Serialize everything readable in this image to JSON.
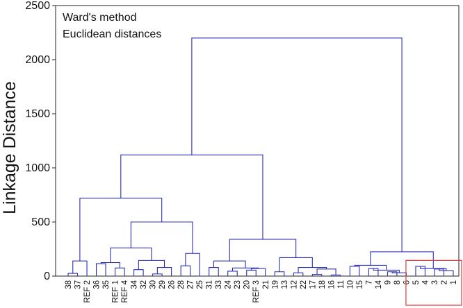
{
  "chart_data": {
    "type": "dendrogram",
    "ylabel": "Linkage Distance",
    "annotation_lines": [
      "Ward's method",
      "Euclidean distances"
    ],
    "ylim": [
      0,
      2500
    ],
    "yticks": [
      0,
      500,
      1000,
      1500,
      2000,
      2500
    ],
    "grid": false,
    "line_color": "#2a2fb8",
    "highlight_color": "#e23a3a",
    "leaves": [
      "38",
      "37",
      "REF 2",
      "36",
      "35",
      "REF 1",
      "REF 4",
      "34",
      "32",
      "30",
      "29",
      "26",
      "28",
      "27",
      "25",
      "31",
      "33",
      "24",
      "23",
      "20",
      "REF 3",
      "21",
      "19",
      "13",
      "12",
      "22",
      "17",
      "18",
      "16",
      "11",
      "10",
      "15",
      "7",
      "14",
      "9",
      "8",
      "6",
      "5",
      "4",
      "3",
      "2",
      "1"
    ],
    "highlighted_leaves": [
      "5",
      "4",
      "3",
      "2",
      "1"
    ],
    "merges": [
      {
        "left": "38",
        "right": "37",
        "height": 25
      },
      {
        "left": 0,
        "right": "REF 2",
        "height": 140
      },
      {
        "left": "36",
        "right": "35",
        "height": 115
      },
      {
        "left": "REF 1",
        "right": "REF 4",
        "height": 75
      },
      {
        "left": 2,
        "right": 3,
        "height": 125
      },
      {
        "left": "34",
        "right": "32",
        "height": 60
      },
      {
        "left": "30",
        "right": "29",
        "height": 20
      },
      {
        "left": 6,
        "right": "26",
        "height": 80
      },
      {
        "left": 5,
        "right": 7,
        "height": 145
      },
      {
        "left": 4,
        "right": 8,
        "height": 260
      },
      {
        "left": "28",
        "right": "27",
        "height": 95
      },
      {
        "left": 10,
        "right": "25",
        "height": 210
      },
      {
        "left": 9,
        "right": 11,
        "height": 500
      },
      {
        "left": 1,
        "right": 12,
        "height": 720
      },
      {
        "left": "31",
        "right": "33",
        "height": 80
      },
      {
        "left": "24",
        "right": "23",
        "height": 45
      },
      {
        "left": "20",
        "right": "REF 3",
        "height": 55
      },
      {
        "left": 16,
        "right": "21",
        "height": 70
      },
      {
        "left": 15,
        "right": 17,
        "height": 75
      },
      {
        "left": 14,
        "right": 18,
        "height": 140
      },
      {
        "left": "19",
        "right": "13",
        "height": 40
      },
      {
        "left": "12",
        "right": "22",
        "height": 30
      },
      {
        "left": "17",
        "right": "18",
        "height": 15
      },
      {
        "left": "16",
        "right": "11",
        "height": 10
      },
      {
        "left": 22,
        "right": 23,
        "height": 65
      },
      {
        "left": 21,
        "right": 24,
        "height": 80
      },
      {
        "left": 20,
        "right": 25,
        "height": 170
      },
      {
        "left": 19,
        "right": 26,
        "height": 340
      },
      {
        "left": 13,
        "right": 27,
        "height": 1120
      },
      {
        "left": "10",
        "right": "15",
        "height": 90
      },
      {
        "left": "7",
        "right": "14",
        "height": 70
      },
      {
        "left": "9",
        "right": "8",
        "height": 40
      },
      {
        "left": 31,
        "right": "6",
        "height": 30
      },
      {
        "left": 30,
        "right": 32,
        "height": 55
      },
      {
        "left": 29,
        "right": 33,
        "height": 100
      },
      {
        "left": "5",
        "right": "4",
        "height": 90
      },
      {
        "left": "3",
        "right": "2",
        "height": 65
      },
      {
        "left": 36,
        "right": "1",
        "height": 50
      },
      {
        "left": 35,
        "right": 37,
        "height": 70
      },
      {
        "left": 34,
        "right": 38,
        "height": 225
      },
      {
        "left": 28,
        "right": 39,
        "height": 2200
      }
    ]
  }
}
